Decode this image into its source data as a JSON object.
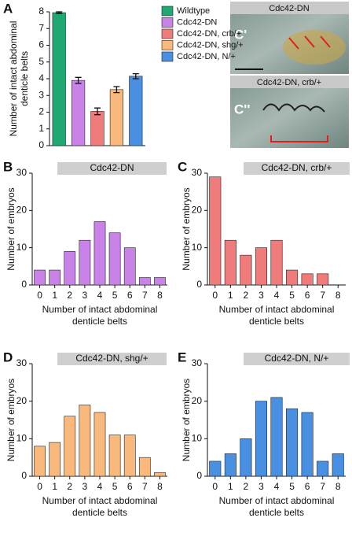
{
  "chart_data": [
    {
      "type": "bar",
      "panel_label": "A",
      "y_label_lines": [
        "Number of intact abdominal",
        "denticle belts"
      ],
      "categories": [
        "Wildtype",
        "Cdc42-DN",
        "Cdc42-DN, crb/+",
        "Cdc42-DN, shg/+",
        "Cdc42-DN, N/+"
      ],
      "values": [
        7.95,
        3.9,
        2.05,
        3.35,
        4.15
      ],
      "errors": [
        0.05,
        0.18,
        0.2,
        0.18,
        0.15
      ],
      "colors": [
        "#1fa872",
        "#c983e8",
        "#f07b7b",
        "#f9b97c",
        "#4a90e2"
      ],
      "ylim": [
        0,
        8
      ],
      "yticks": [
        0,
        1,
        2,
        3,
        4,
        5,
        6,
        7,
        8
      ]
    },
    {
      "type": "histogram",
      "panel_label": "B",
      "title": "Cdc42-DN",
      "y_label": "Number of embryos",
      "x_label_lines": [
        "Number of intact abdominal",
        "denticle belts"
      ],
      "categories": [
        "0",
        "1",
        "2",
        "3",
        "4",
        "5",
        "6",
        "7",
        "8"
      ],
      "values": [
        4,
        4,
        9,
        12,
        17,
        14,
        10,
        2,
        2
      ],
      "color": "#c983e8",
      "ylim": [
        0,
        30
      ],
      "yticks": [
        0,
        10,
        20,
        30
      ]
    },
    {
      "type": "histogram",
      "panel_label": "C",
      "title": "Cdc42-DN, crb/+",
      "y_label": "Number of embryos",
      "x_label_lines": [
        "Number of intact abdominal",
        "denticle belts"
      ],
      "categories": [
        "0",
        "1",
        "2",
        "3",
        "4",
        "5",
        "6",
        "7",
        "8"
      ],
      "values": [
        29,
        12,
        8,
        10,
        12,
        4,
        3,
        3,
        0
      ],
      "color": "#f07b7b",
      "ylim": [
        0,
        30
      ],
      "yticks": [
        0,
        10,
        20,
        30
      ]
    },
    {
      "type": "histogram",
      "panel_label": "D",
      "title": "Cdc42-DN, shg/+",
      "y_label": "Number of embryos",
      "x_label_lines": [
        "Number of intact abdominal",
        "denticle belts"
      ],
      "categories": [
        "0",
        "1",
        "2",
        "3",
        "4",
        "5",
        "6",
        "7",
        "8"
      ],
      "values": [
        8,
        9,
        16,
        19,
        17,
        11,
        11,
        5,
        1
      ],
      "color": "#f9b97c",
      "ylim": [
        0,
        30
      ],
      "yticks": [
        0,
        10,
        20,
        30
      ]
    },
    {
      "type": "histogram",
      "panel_label": "E",
      "title": "Cdc42-DN, N/+",
      "y_label": "Number of embryos",
      "x_label_lines": [
        "Number of intact abdominal",
        "denticle belts"
      ],
      "categories": [
        "0",
        "1",
        "2",
        "3",
        "4",
        "5",
        "6",
        "7",
        "8"
      ],
      "values": [
        4,
        6,
        10,
        20,
        21,
        18,
        17,
        4,
        6
      ],
      "color": "#4a90e2",
      "ylim": [
        0,
        30
      ],
      "yticks": [
        0,
        10,
        20,
        30
      ]
    }
  ],
  "photo": {
    "top_label": "Cdc42-DN",
    "top_panel": "C'",
    "bottom_label": "Cdc42-DN, crb/+",
    "bottom_panel": "C''"
  }
}
